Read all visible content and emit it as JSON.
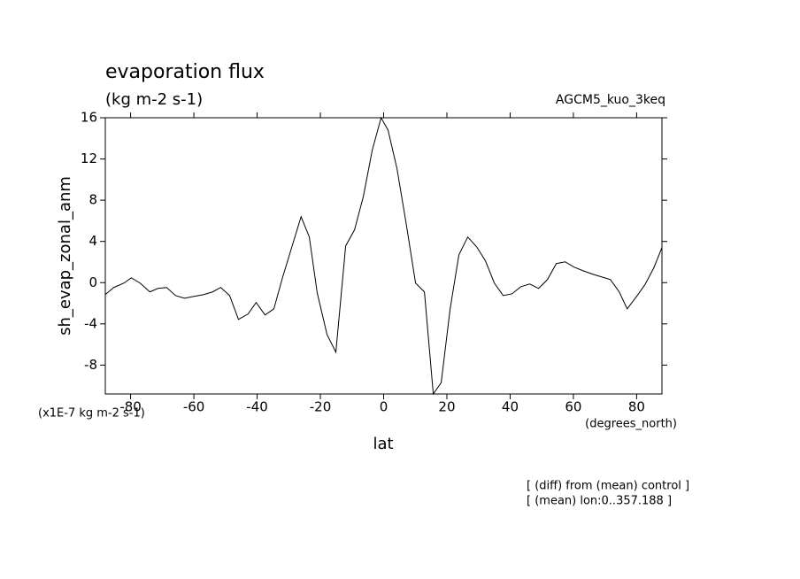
{
  "chart_data": {
    "type": "line",
    "title": "evaporation flux",
    "subtitle": "(kg m-2 s-1)",
    "model_label": "AGCM5_kuo_3keq",
    "y_label": "sh_evap_zonal_anm",
    "y_units": "(x1E-7 kg m-2 s-1)",
    "x_label": "lat",
    "x_units": "(degrees_north)",
    "annotations": [
      "[ (diff) from (mean) control ]",
      "[ (mean) lon:0..357.188 ]"
    ],
    "x": [
      -88.0,
      -85.4,
      -82.1,
      -79.8,
      -77.0,
      -73.9,
      -71.4,
      -68.6,
      -65.8,
      -63.0,
      -59.9,
      -56.9,
      -54.1,
      -51.5,
      -48.7,
      -45.9,
      -42.9,
      -40.3,
      -37.5,
      -34.7,
      -31.9,
      -26.1,
      -23.5,
      -21.0,
      -17.9,
      -15.1,
      -12.0,
      -9.2,
      -6.4,
      -3.6,
      -0.8,
      1.4,
      4.2,
      7.0,
      10.1,
      12.9,
      15.7,
      18.2,
      21.0,
      23.8,
      26.6,
      29.4,
      32.2,
      35.0,
      37.8,
      40.6,
      43.4,
      46.2,
      49.0,
      51.8,
      54.6,
      57.4,
      60.2,
      63.0,
      66.1,
      68.9,
      71.7,
      74.5,
      77.0,
      79.8,
      82.6,
      85.4,
      88.0
    ],
    "series": [
      {
        "color": "#000000",
        "values": [
          -1.16,
          -0.48,
          -0.04,
          0.47,
          -0.04,
          -0.9,
          -0.56,
          -0.47,
          -1.25,
          -1.51,
          -1.33,
          -1.16,
          -0.9,
          -0.47,
          -1.25,
          -3.57,
          -3.05,
          -1.93,
          -3.14,
          -2.54,
          0.56,
          6.4,
          4.43,
          -0.99,
          -5.03,
          -6.75,
          3.57,
          5.12,
          8.38,
          12.85,
          16.0,
          14.8,
          11.1,
          5.98,
          -0.04,
          -0.9,
          -10.8,
          -9.7,
          -2.6,
          2.7,
          4.43,
          3.48,
          2.11,
          -0.04,
          -1.25,
          -1.08,
          -0.39,
          -0.13,
          -0.56,
          0.3,
          1.85,
          2.02,
          1.51,
          1.16,
          0.82,
          0.56,
          0.3,
          -0.9,
          -2.54,
          -1.42,
          -0.21,
          1.42,
          3.4
        ]
      }
    ],
    "xlim": [
      -88,
      88
    ],
    "ylim": [
      -10.8,
      16
    ],
    "xticks": [
      -80,
      -60,
      -40,
      -20,
      0,
      20,
      40,
      60,
      80
    ],
    "yticks": [
      -8,
      -4,
      0,
      4,
      8,
      12,
      16
    ]
  }
}
